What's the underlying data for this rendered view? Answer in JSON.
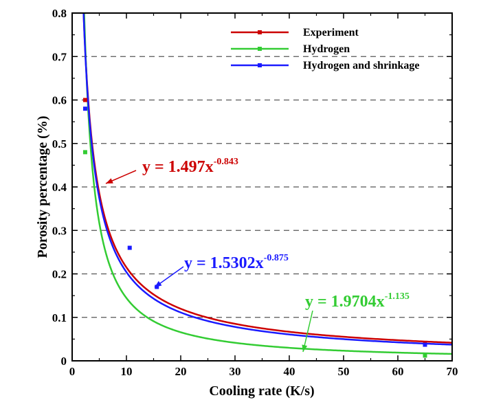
{
  "chart_data": {
    "type": "line",
    "xlabel": "Cooling rate (K/s)",
    "ylabel": "Porosity percentage (%)",
    "xlim": [
      0,
      70
    ],
    "ylim": [
      0,
      0.8
    ],
    "xticks": [
      0,
      10,
      20,
      30,
      40,
      50,
      60,
      70
    ],
    "yticks": [
      0,
      0.1,
      0.2,
      0.3,
      0.4,
      0.5,
      0.6,
      0.7,
      0.8
    ],
    "xtick_labels": [
      "0",
      "10",
      "20",
      "30",
      "40",
      "50",
      "60",
      "70"
    ],
    "ytick_labels": [
      "0",
      "0.1",
      "0.2",
      "0.3",
      "0.4",
      "0.5",
      "0.6",
      "0.7",
      "0.8"
    ],
    "grid": "horizontal dashed",
    "legend_position": "top-right",
    "series": [
      {
        "name": "Experiment",
        "color": "#cc0000",
        "fit": {
          "a": 1.497,
          "b": -0.843
        },
        "points": [
          {
            "x": 2.4,
            "y": 0.6
          },
          {
            "x": 65,
            "y": 0.04
          }
        ],
        "annotation": {
          "base": "y = 1.497x",
          "exponent": "-0.843"
        }
      },
      {
        "name": "Hydrogen",
        "color": "#33cc33",
        "fit": {
          "a": 1.9704,
          "b": -1.135
        },
        "points": [
          {
            "x": 2.4,
            "y": 0.48
          },
          {
            "x": 65,
            "y": 0.012
          }
        ],
        "annotation": {
          "base": "y = 1.9704x",
          "exponent": "-1.135"
        }
      },
      {
        "name": "Hydrogen and shrinkage",
        "color": "#1a1aff",
        "fit": {
          "a": 1.5302,
          "b": -0.875
        },
        "points": [
          {
            "x": 2.4,
            "y": 0.58
          },
          {
            "x": 10.6,
            "y": 0.26
          },
          {
            "x": 15.6,
            "y": 0.17
          },
          {
            "x": 65,
            "y": 0.037
          }
        ],
        "annotation": {
          "base": "y = 1.5302x",
          "exponent": "-0.875"
        }
      }
    ]
  }
}
